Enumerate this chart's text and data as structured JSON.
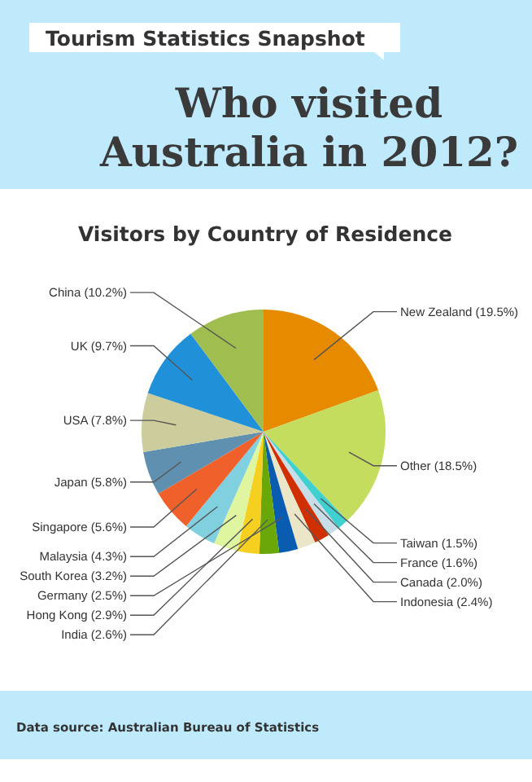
{
  "chart_data": {
    "type": "pie",
    "title": "Who visited Australia in 2012?",
    "subtitle": "Visitors by Country of Residence",
    "annotations": [
      "Tourism Statistics Snapshot",
      "Data source: Australian Bureau of Statistics"
    ],
    "categories": [
      "New Zealand",
      "Other",
      "Taiwan",
      "France",
      "Canada",
      "Indonesia",
      "Germany",
      "India",
      "Hong Kong",
      "South Korea",
      "Malaysia",
      "Singapore",
      "Japan",
      "USA",
      "UK",
      "China"
    ],
    "values": [
      19.5,
      18.5,
      1.5,
      1.6,
      2.0,
      2.4,
      2.5,
      2.6,
      2.9,
      3.2,
      4.3,
      5.6,
      5.8,
      7.8,
      9.7,
      10.2
    ],
    "value_labels": [
      "(19.5%)",
      "(18.5%)",
      "(1.5%)",
      "(1.6%)",
      "(2.0%)",
      "(2.4%)",
      "(2.5%)",
      "(2.6%)",
      "(2.9%)",
      "(3.2%)",
      "(4.3%)",
      "(5.6%)",
      "(5.8%)",
      "(7.8%)",
      "(9.7%)",
      "(10.2%)"
    ],
    "colors": [
      "#e68a00",
      "#c5dd5f",
      "#40d0d0",
      "#c8dde8",
      "#d03000",
      "#ece6c8",
      "#0a5cb0",
      "#6aa80a",
      "#f5d020",
      "#e0f5a0",
      "#80d0e0",
      "#f0602a",
      "#6090b0",
      "#cccc9c",
      "#2090d8",
      "#a0bd50"
    ]
  }
}
